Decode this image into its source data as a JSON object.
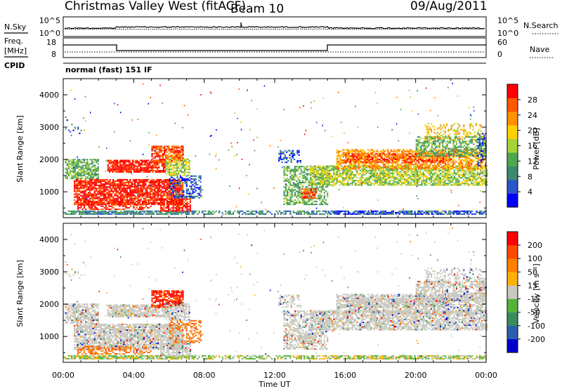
{
  "header": {
    "title": "Christmas Valley West (fitACF)",
    "beam": "Beam 10",
    "date": "09/Aug/2011"
  },
  "top_panels": {
    "nsky_label": "N.Sky",
    "nsearch_label": "N.Search",
    "noise_ticks": [
      "10^5",
      "10^0"
    ],
    "freq_label_1": "Freq.",
    "freq_label_2": "[MHz]",
    "freq_ticks": [
      "18",
      "8"
    ],
    "nave_ticks": [
      "60",
      "0"
    ],
    "nave_label": "Nave",
    "cpid_label": "CPID",
    "cpid_text": "normal (fast) 151 IF"
  },
  "legend_samples": {
    "nsearch_line": "dotted",
    "nave_line": "dotted"
  },
  "colors": {
    "power": [
      "#0000ff",
      "#2b56c8",
      "#3c8a6e",
      "#4ea84e",
      "#a8d23a",
      "#ffd000",
      "#ff9000",
      "#ff5a00",
      "#ff0000"
    ],
    "velocity": [
      "#0000cc",
      "#2a5fb0",
      "#3a8c5e",
      "#55b33a",
      "#c8c8c0",
      "#ffb000",
      "#ff8000",
      "#ff4a00",
      "#ff0000"
    ],
    "ground_scatter": "#c8c8c0"
  },
  "chart_data": [
    {
      "type": "heatmap",
      "name": "power",
      "ylabel": "Slant Range [km]",
      "ylim": [
        200,
        4500
      ],
      "yticks": [
        "1000",
        "2000",
        "3000",
        "4000"
      ],
      "colorbar_label": "Power [dB]",
      "colorbar_ticks": [
        "4",
        "8",
        "12",
        "16",
        "20",
        "24",
        "28"
      ],
      "colorbar_range": [
        0,
        32
      ]
    },
    {
      "type": "heatmap",
      "name": "velocity",
      "ylabel": "Slant Range [km]",
      "ylim": [
        200,
        4500
      ],
      "yticks": [
        "1000",
        "2000",
        "3000",
        "4000"
      ],
      "colorbar_label": "Velocity [m s⁻¹]",
      "colorbar_ticks": [
        "200",
        "100",
        "50",
        "15",
        "-15",
        "-50",
        "-100",
        "-200"
      ],
      "colorbar_range": [
        -300,
        300
      ]
    }
  ],
  "x_axis": {
    "label": "Time UT",
    "ticks": [
      "00:00",
      "04:00",
      "08:00",
      "12:00",
      "16:00",
      "20:00",
      "00:00"
    ]
  }
}
